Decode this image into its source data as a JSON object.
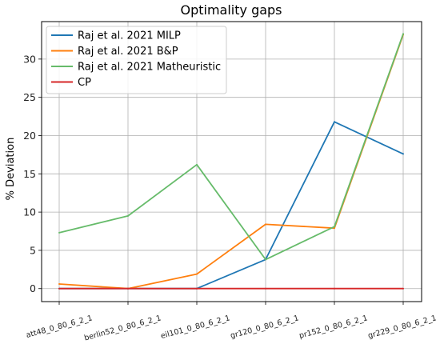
{
  "chart_data": {
    "type": "line",
    "title": "Optimality gaps",
    "xlabel": "",
    "ylabel": "% Deviation",
    "categories": [
      "att48_0_80_6_2_1",
      "berlin52_0_80_6_2_1",
      "eil101_0_80_6_2_1",
      "gr120_0_80_6_2_1",
      "pr152_0_80_6_2_1",
      "gr229_0_80_6_2_1"
    ],
    "ylim": [
      -1.7,
      34.9
    ],
    "yticks": [
      0,
      5,
      10,
      15,
      20,
      25,
      30
    ],
    "grid": true,
    "legend_position": "upper-left",
    "series": [
      {
        "name": "Raj et al.  2021 MILP",
        "color": "#1f77b4",
        "values": [
          0,
          0,
          0,
          3.8,
          21.8,
          17.6
        ]
      },
      {
        "name": "Raj et al.  2021 B&P",
        "color": "#ff7f0e",
        "values": [
          0.6,
          0,
          1.9,
          8.4,
          7.9,
          33.2
        ]
      },
      {
        "name": "Raj et al.  2021 Matheuristic",
        "color": "#66bb6a",
        "values": [
          7.3,
          9.5,
          16.2,
          3.8,
          8.1,
          33.3
        ]
      },
      {
        "name": "CP",
        "color": "#d62728",
        "values": [
          0,
          0,
          0,
          0,
          0,
          0
        ]
      }
    ]
  }
}
